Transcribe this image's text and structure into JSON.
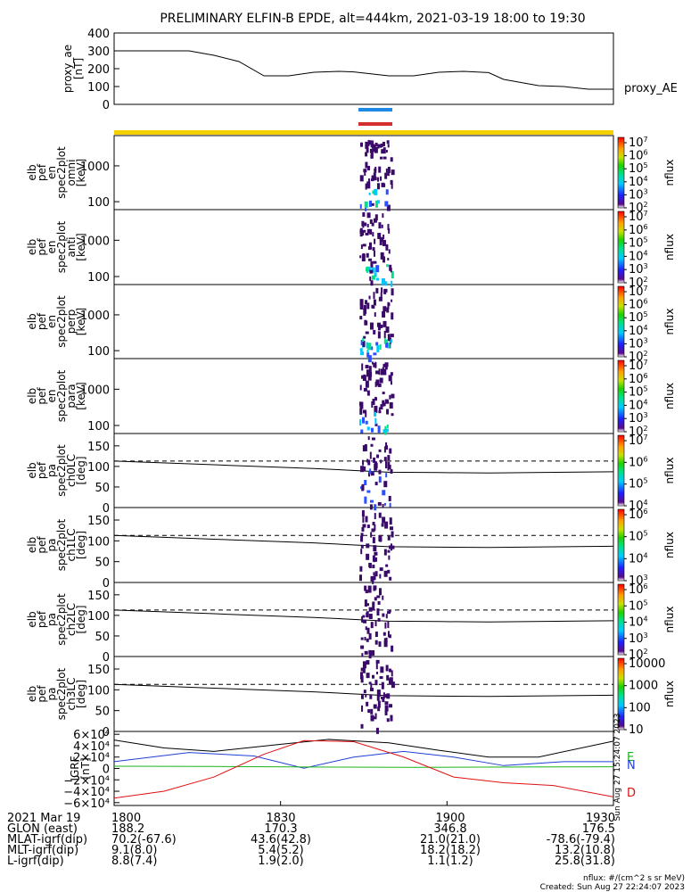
{
  "title": "PRELIMINARY ELFIN-B EPDE, alt=444km, 2021-03-19 18:00 to 19:30",
  "colors": {
    "bar_blue": "#1e88e5",
    "bar_red": "#d32f2f",
    "bar_yellow": "#f5d000",
    "igrf_black": "#000000",
    "igrf_blue": "#1f3fd6",
    "igrf_green": "#19b419",
    "igrf_red": "#e01010",
    "label_E": "#19b419",
    "label_N": "#1f3fd6",
    "label_D": "#e01010"
  },
  "panels": {
    "ae": {
      "ylabel": [
        "proxy_ae",
        "[nT]"
      ],
      "legend": "proxy_AE"
    },
    "en_omni": {
      "ylabel": [
        "elb",
        "pef",
        "en",
        "spec2plot",
        "omni",
        "[keV]"
      ],
      "cblabel": "nflux"
    },
    "en_anti": {
      "ylabel": [
        "elb",
        "pef",
        "en",
        "spec2plot",
        "anti",
        "[keV]"
      ],
      "cblabel": "nflux"
    },
    "en_perp": {
      "ylabel": [
        "elb",
        "pef",
        "en",
        "spec2plot",
        "perp",
        "[keV]"
      ],
      "cblabel": "nflux"
    },
    "en_para": {
      "ylabel": [
        "elb",
        "pef",
        "en",
        "spec2plot",
        "para",
        "[keV]"
      ],
      "cblabel": "nflux"
    },
    "pa_ch0": {
      "ylabel": [
        "elb",
        "pef",
        "pa",
        "spec2plot",
        "ch0LC",
        "[deg]"
      ],
      "cblabel": "nflux"
    },
    "pa_ch1": {
      "ylabel": [
        "elb",
        "pef",
        "pa",
        "spec2plot",
        "ch1LC",
        "[deg]"
      ],
      "cblabel": "nflux"
    },
    "pa_ch2": {
      "ylabel": [
        "elb",
        "pef",
        "pa",
        "spec2plot",
        "ch2LC",
        "[deg]"
      ],
      "cblabel": "nflux"
    },
    "pa_ch3": {
      "ylabel": [
        "elb",
        "pef",
        "pa",
        "spec2plot",
        "ch3LC",
        "[deg]"
      ],
      "cblabel": "nflux"
    },
    "igrf": {
      "ylabel": [
        "IGRF",
        "[nT]"
      ]
    }
  },
  "component_labels": [
    "E",
    "N",
    "D"
  ],
  "footer": {
    "rows": [
      {
        "label": "2021 Mar 19",
        "values": [
          "1800",
          "1830",
          "1900",
          "1930"
        ]
      },
      {
        "label": "GLON (east)",
        "values": [
          "188.2",
          "170.3",
          "346.8",
          "176.5"
        ]
      },
      {
        "label": "MLAT-igrf(dip)",
        "values": [
          "70.2(-67.6)",
          "43.6(42.8)",
          "21.0(21.0)",
          "-78.6(-79.4)"
        ]
      },
      {
        "label": "MLT-igrf(dip)",
        "values": [
          "9.1(8.0)",
          "5.4(5.2)",
          "18.2(18.2)",
          "13.2(10.8)"
        ]
      },
      {
        "label": "L-igrf(dip)",
        "values": [
          "8.8(7.4)",
          "1.9(2.0)",
          "1.1(1.2)",
          "25.8(31.8)"
        ]
      }
    ],
    "units_note": "nflux: #/(cm^2 s sr MeV)",
    "created": "Created: Sun Aug 27 22:24:07 2023",
    "side_stamp": "Sun Aug 27 15:24:07 2023"
  },
  "chart_data": [
    {
      "type": "line",
      "title": "PRELIMINARY ELFIN-B EPDE, alt=444km, 2021-03-19 18:00 to 19:30",
      "ylabel": "proxy_ae [nT]",
      "ylim": [
        0,
        400
      ],
      "yticks": [
        "400",
        "300",
        "200",
        "100",
        "0"
      ],
      "series": [
        {
          "name": "proxy_AE",
          "x": [
            0,
            15,
            20,
            25,
            30,
            35,
            40,
            45,
            48,
            55,
            60,
            65,
            70,
            75,
            78,
            85,
            90,
            95,
            100
          ],
          "y": [
            300,
            300,
            275,
            240,
            160,
            160,
            180,
            185,
            182,
            160,
            160,
            180,
            185,
            178,
            140,
            105,
            100,
            85,
            85
          ]
        }
      ]
    },
    {
      "type": "heatmap",
      "panel": "en_omni",
      "ylabel": "elb pef en spec2plot omni [keV]",
      "yscale": "log",
      "ylim": [
        60,
        7000
      ],
      "yticks": [
        "1000",
        "100"
      ],
      "colorbar": {
        "label": "nflux",
        "ticks": [
          "10^7",
          "10^6",
          "10^5",
          "10^4",
          "10^3",
          "10^2"
        ]
      }
    },
    {
      "type": "heatmap",
      "panel": "en_anti",
      "ylabel": "elb pef en spec2plot anti [keV]",
      "yscale": "log",
      "ylim": [
        60,
        7000
      ],
      "yticks": [
        "1000",
        "100"
      ],
      "colorbar": {
        "label": "nflux",
        "ticks": [
          "10^7",
          "10^6",
          "10^5",
          "10^4",
          "10^3",
          "10^2"
        ]
      }
    },
    {
      "type": "heatmap",
      "panel": "en_perp",
      "ylabel": "elb pef en spec2plot perp [keV]",
      "yscale": "log",
      "ylim": [
        60,
        7000
      ],
      "yticks": [
        "1000",
        "100"
      ],
      "colorbar": {
        "label": "nflux",
        "ticks": [
          "10^7",
          "10^6",
          "10^5",
          "10^4",
          "10^3",
          "10^2"
        ]
      }
    },
    {
      "type": "heatmap",
      "panel": "en_para",
      "ylabel": "elb pef en spec2plot para [keV]",
      "yscale": "log",
      "ylim": [
        60,
        7000
      ],
      "yticks": [
        "1000",
        "100"
      ],
      "colorbar": {
        "label": "nflux",
        "ticks": [
          "10^7",
          "10^6",
          "10^5",
          "10^4",
          "10^3",
          "10^2"
        ]
      }
    },
    {
      "type": "heatmap",
      "panel": "pa_ch0",
      "ylabel": "elb pef pa spec2plot ch0LC [deg]",
      "ylim": [
        0,
        180
      ],
      "yticks": [
        "150",
        "100",
        "50",
        "0"
      ],
      "colorbar": {
        "label": "nflux",
        "ticks": [
          "10^7",
          "10^6",
          "10^5",
          "10^4"
        ]
      },
      "series": [
        {
          "name": "solid",
          "style": "solid",
          "x": [
            0,
            20,
            40,
            50,
            55,
            65,
            75,
            100
          ],
          "y": [
            113,
            104,
            95,
            89,
            86,
            85,
            84,
            87
          ]
        },
        {
          "name": "dashed",
          "style": "dashed",
          "x": [
            0,
            100
          ],
          "y": [
            113,
            113
          ]
        }
      ]
    },
    {
      "type": "heatmap",
      "panel": "pa_ch1",
      "ylabel": "elb pef pa spec2plot ch1LC [deg]",
      "ylim": [
        0,
        180
      ],
      "yticks": [
        "150",
        "100",
        "50",
        "0"
      ],
      "colorbar": {
        "label": "nflux",
        "ticks": [
          "10^6",
          "10^5",
          "10^4",
          "10^3"
        ]
      }
    },
    {
      "type": "heatmap",
      "panel": "pa_ch2",
      "ylabel": "elb pef pa spec2plot ch2LC [deg]",
      "ylim": [
        0,
        180
      ],
      "yticks": [
        "150",
        "100",
        "50",
        "0"
      ],
      "colorbar": {
        "label": "nflux",
        "ticks": [
          "10^6",
          "10^5",
          "10^4",
          "10^3",
          "10^2"
        ]
      }
    },
    {
      "type": "heatmap",
      "panel": "pa_ch3",
      "ylabel": "elb pef pa spec2plot ch3LC [deg]",
      "ylim": [
        0,
        180
      ],
      "yticks": [
        "150",
        "100",
        "50",
        "0"
      ],
      "colorbar": {
        "label": "nflux",
        "ticks": [
          "10000",
          "1000",
          "100",
          "10"
        ]
      }
    },
    {
      "type": "line",
      "ylabel": "IGRF [nT]",
      "ylim": [
        -65000,
        65000
      ],
      "yticks": [
        "6×10⁴",
        "4×10⁴",
        "2×10⁴",
        "0",
        "−2×10⁴",
        "−4×10⁴",
        "−6×10⁴"
      ],
      "x_ticks": [
        "1800",
        "1830",
        "1900",
        "1930"
      ],
      "series": [
        {
          "name": "",
          "color": "black",
          "x": [
            0,
            10,
            20,
            33,
            43,
            55,
            65,
            75,
            85,
            100
          ],
          "y": [
            50000,
            36000,
            30000,
            42000,
            51000,
            45000,
            32000,
            20000,
            20000,
            48000
          ]
        },
        {
          "name": "N",
          "color": "blue",
          "x": [
            0,
            15,
            28,
            38,
            48,
            58,
            68,
            78,
            90,
            100
          ],
          "y": [
            12000,
            28000,
            22000,
            500,
            20000,
            30000,
            20000,
            5000,
            12000,
            12000
          ]
        },
        {
          "name": "E",
          "color": "green",
          "x": [
            0,
            20,
            40,
            60,
            80,
            100
          ],
          "y": [
            4000,
            3500,
            2500,
            2000,
            2500,
            3000
          ]
        },
        {
          "name": "D",
          "color": "red",
          "x": [
            0,
            10,
            20,
            30,
            38,
            48,
            58,
            68,
            78,
            88,
            100
          ],
          "y": [
            -52000,
            -40000,
            -15000,
            25000,
            49000,
            47000,
            20000,
            -15000,
            -25000,
            -30000,
            -50000
          ]
        }
      ]
    }
  ]
}
